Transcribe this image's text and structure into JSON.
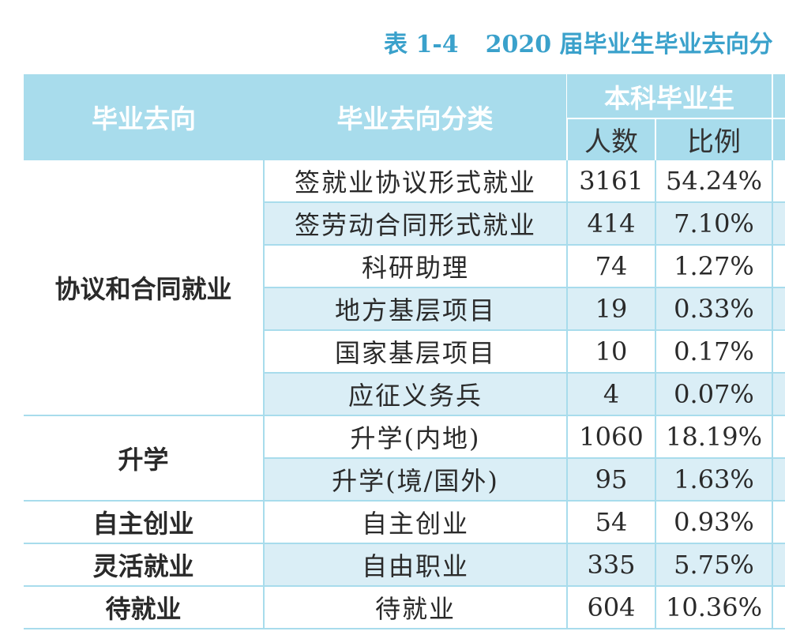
{
  "caption": {
    "number": "表 1-4",
    "title": "2020 届毕业生毕业去向分"
  },
  "header": {
    "col_direction": "毕业去向",
    "col_category": "毕业去向分类",
    "group_undergrad": "本科毕业生",
    "col_count": "人数",
    "col_ratio": "比例"
  },
  "groups": [
    {
      "direction": "协议和合同就业",
      "rows": [
        {
          "category": "签就业协议形式就业",
          "count": "3161",
          "ratio": "54.24%"
        },
        {
          "category": "签劳动合同形式就业",
          "count": "414",
          "ratio": "7.10%"
        },
        {
          "category": "科研助理",
          "count": "74",
          "ratio": "1.27%"
        },
        {
          "category": "地方基层项目",
          "count": "19",
          "ratio": "0.33%"
        },
        {
          "category": "国家基层项目",
          "count": "10",
          "ratio": "0.17%"
        },
        {
          "category": "应征义务兵",
          "count": "4",
          "ratio": "0.07%"
        }
      ]
    },
    {
      "direction": "升学",
      "rows": [
        {
          "category": "升学(内地)",
          "count": "1060",
          "ratio": "18.19%"
        },
        {
          "category": "升学(境/国外)",
          "count": "95",
          "ratio": "1.63%"
        }
      ]
    },
    {
      "direction": "自主创业",
      "rows": [
        {
          "category": "自主创业",
          "count": "54",
          "ratio": "0.93%"
        }
      ]
    },
    {
      "direction": "灵活就业",
      "rows": [
        {
          "category": "自由职业",
          "count": "335",
          "ratio": "5.75%"
        }
      ]
    },
    {
      "direction": "待就业",
      "rows": [
        {
          "category": "待就业",
          "count": "604",
          "ratio": "10.36%"
        }
      ]
    }
  ]
}
